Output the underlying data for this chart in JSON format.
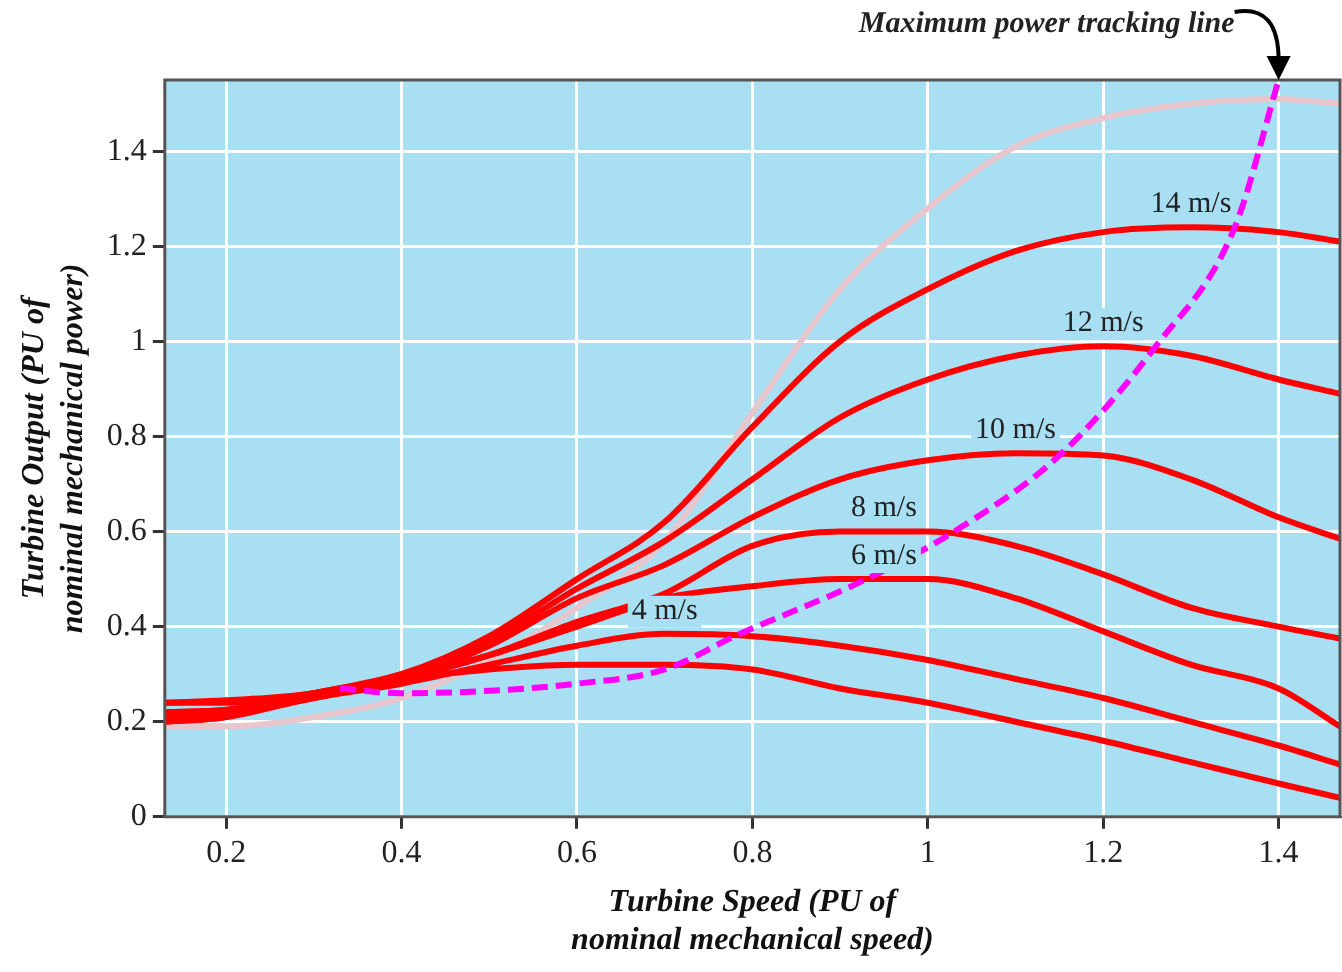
{
  "chart_data": {
    "type": "line",
    "xlabel": "Turbine Speed (PU of nominal mechanical speed)",
    "ylabel": "Turbine Output (PU of nominal mechanical power)",
    "x": [
      0.13,
      0.2,
      0.3,
      0.4,
      0.5,
      0.6,
      0.7,
      0.8,
      0.9,
      1.0,
      1.1,
      1.2,
      1.3,
      1.4,
      1.47
    ],
    "series": [
      {
        "color": "#e8c6cd",
        "values": [
          0.19,
          0.19,
          0.21,
          0.25,
          0.33,
          0.44,
          0.58,
          0.85,
          1.11,
          1.28,
          1.41,
          1.47,
          1.5,
          1.51,
          1.5
        ]
      },
      {
        "name": "14 m/s",
        "color": "#ff0000",
        "values": [
          0.24,
          0.245,
          0.26,
          0.3,
          0.38,
          0.5,
          0.62,
          0.82,
          1.0,
          1.11,
          1.19,
          1.23,
          1.24,
          1.23,
          1.21
        ]
      },
      {
        "name": "12 m/s",
        "color": "#ff0000",
        "values": [
          0.22,
          0.225,
          0.26,
          0.3,
          0.37,
          0.48,
          0.58,
          0.71,
          0.84,
          0.92,
          0.97,
          0.99,
          0.97,
          0.92,
          0.89
        ]
      },
      {
        "name": "10 m/s",
        "color": "#ff0000",
        "values": [
          0.22,
          0.225,
          0.255,
          0.29,
          0.36,
          0.46,
          0.53,
          0.63,
          0.71,
          0.75,
          0.765,
          0.76,
          0.71,
          0.63,
          0.585
        ]
      },
      {
        "name": "8 m/s",
        "color": "#ff0000",
        "values": [
          0.24,
          0.24,
          0.26,
          0.29,
          0.34,
          0.41,
          0.47,
          0.57,
          0.6,
          0.6,
          0.57,
          0.51,
          0.44,
          0.4,
          0.375
        ]
      },
      {
        "name": "6 m/s",
        "color": "#ff0000",
        "values": [
          0.21,
          0.22,
          0.25,
          0.29,
          0.34,
          0.4,
          0.46,
          0.485,
          0.5,
          0.5,
          0.46,
          0.39,
          0.32,
          0.27,
          0.19
        ]
      },
      {
        "name": "4 m/s",
        "color": "#ff0000",
        "values": [
          0.2,
          0.21,
          0.25,
          0.28,
          0.32,
          0.36,
          0.385,
          0.38,
          0.36,
          0.33,
          0.29,
          0.25,
          0.2,
          0.15,
          0.11
        ]
      },
      {
        "color": "#ff0000",
        "values": [
          0.2,
          0.21,
          0.26,
          0.29,
          0.31,
          0.32,
          0.32,
          0.31,
          0.27,
          0.24,
          0.2,
          0.16,
          0.115,
          0.07,
          0.04
        ]
      },
      {
        "name": "Maximum power tracking line",
        "color": "#ff00ff",
        "line_style": "dashed",
        "x": [
          0.33,
          0.4,
          0.5,
          0.6,
          0.7,
          0.78,
          0.93,
          1.03,
          1.15,
          1.26,
          1.35,
          1.4
        ],
        "values": [
          0.27,
          0.26,
          0.265,
          0.28,
          0.31,
          0.38,
          0.5,
          0.6,
          0.76,
          0.99,
          1.24,
          1.55
        ]
      }
    ],
    "xlim": [
      0.13,
      1.47
    ],
    "xticks": [
      0.2,
      0.4,
      0.6,
      0.8,
      1,
      1.2,
      1.4
    ],
    "ylim": [
      0,
      1.55
    ],
    "yticks": [
      0,
      0.2,
      0.4,
      0.6,
      0.8,
      1,
      1.2,
      1.4
    ],
    "grid": true,
    "legend": false,
    "marker": "none",
    "line_style": "solid"
  }
}
